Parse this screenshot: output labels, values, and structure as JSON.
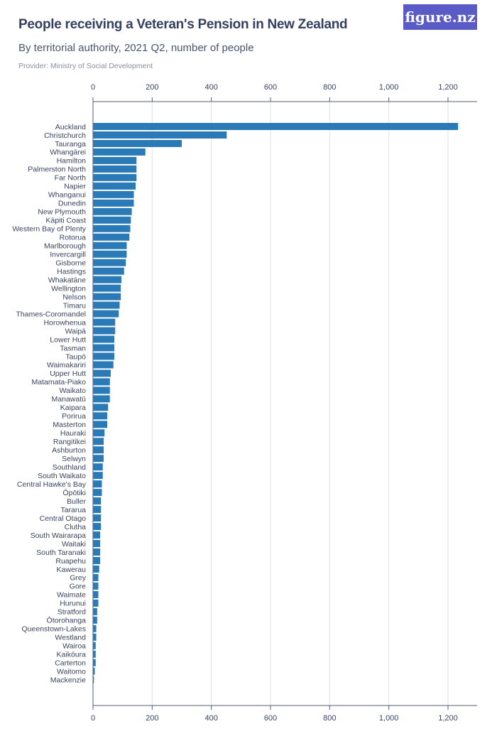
{
  "header": {
    "title": "People receiving a Veteran's Pension in New Zealand",
    "subtitle": "By territorial authority, 2021 Q2, number of people",
    "provider": "Provider: Ministry of Social Development",
    "logo": "figure.nz"
  },
  "colors": {
    "bar": "#2a7ab8",
    "grid": "#e2e2e2",
    "axis": "#555c70",
    "logo_bg": "#5b5bc8"
  },
  "chart_data": {
    "type": "bar",
    "orientation": "horizontal",
    "title": "People receiving a Veteran's Pension in New Zealand",
    "subtitle": "By territorial authority, 2021 Q2, number of people",
    "xlim": [
      0,
      1300
    ],
    "ticks": [
      0,
      200,
      400,
      600,
      800,
      1000,
      1200
    ],
    "tick_labels": [
      "0",
      "200",
      "400",
      "600",
      "800",
      "1,000",
      "1,200"
    ],
    "axis_position": "top and bottom",
    "grid": true,
    "categories": [
      "Auckland",
      "Christchurch",
      "Tauranga",
      "Whangārei",
      "Hamilton",
      "Palmerston North",
      "Far North",
      "Napier",
      "Whanganui",
      "Dunedin",
      "New Plymouth",
      "Kāpiti Coast",
      "Western Bay of Plenty",
      "Rotorua",
      "Marlborough",
      "Invercargill",
      "Gisborne",
      "Hastings",
      "Whakatāne",
      "Wellington",
      "Nelson",
      "Timaru",
      "Thames-Coromandel",
      "Horowhenua",
      "Waipā",
      "Lower Hutt",
      "Tasman",
      "Taupō",
      "Waimakariri",
      "Upper Hutt",
      "Matamata-Piako",
      "Waikato",
      "Manawatū",
      "Kaipara",
      "Porirua",
      "Masterton",
      "Hauraki",
      "Rangitikei",
      "Ashburton",
      "Selwyn",
      "Southland",
      "South Waikato",
      "Central Hawke's Bay",
      "Ōpōtiki",
      "Buller",
      "Tararua",
      "Central Otago",
      "Clutha",
      "South Wairarapa",
      "Waitaki",
      "South Taranaki",
      "Ruapehu",
      "Kawerau",
      "Grey",
      "Gore",
      "Waimate",
      "Hurunui",
      "Stratford",
      "Ōtorohanga",
      "Queenstown-Lakes",
      "Westland",
      "Wairoa",
      "Kaikōura",
      "Carterton",
      "Waitomo",
      "Mackenzie"
    ],
    "values": [
      1234,
      452,
      300,
      177,
      147,
      147,
      147,
      144,
      138,
      138,
      131,
      128,
      126,
      123,
      114,
      114,
      111,
      105,
      96,
      94,
      94,
      90,
      87,
      75,
      75,
      72,
      72,
      72,
      69,
      60,
      57,
      57,
      57,
      51,
      48,
      48,
      39,
      36,
      36,
      36,
      33,
      33,
      30,
      30,
      27,
      27,
      27,
      27,
      24,
      24,
      24,
      24,
      21,
      18,
      18,
      18,
      18,
      14,
      14,
      11,
      11,
      9,
      9,
      9,
      6,
      3
    ]
  }
}
